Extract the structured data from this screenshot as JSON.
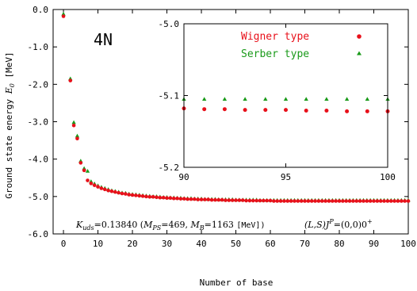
{
  "chart_data": [
    {
      "name": "main",
      "type": "scatter",
      "xlabel": "Number of base",
      "ylabel": "Ground state energy E0 [MeV]",
      "ylabel_parts": {
        "prefix": "Ground state energy ",
        "symbol": "E",
        "sub": "0",
        "suffix": " [MeV]"
      },
      "xlim": [
        -3,
        100
      ],
      "ylim": [
        -6.0,
        0.0
      ],
      "xticks": [
        0,
        10,
        20,
        30,
        40,
        50,
        60,
        70,
        80,
        90,
        100
      ],
      "yticks": [
        0.0,
        -1.0,
        -2.0,
        -3.0,
        -4.0,
        -5.0,
        -6.0
      ],
      "ytick_labels": [
        "0.0",
        "-1.0",
        "-2.0",
        "-3.0",
        "-4.0",
        "-5.0",
        "-6.0"
      ],
      "label_4n": "4N",
      "kuds_text": {
        "k": "K",
        "k_sub": "uds",
        "k_val": "=0.13840 (",
        "mps": "M",
        "mps_sub": "PS",
        "mps_val": "=469, ",
        "mb": "M",
        "mb_sub": "B",
        "mb_val": "=1163 ",
        "unit": "[MeV])"
      },
      "state_text": {
        "ls": "(L,S)J",
        "sup": "P",
        "val": "=(0,0)0",
        "sup2": "+"
      },
      "series": [
        {
          "name": "Wigner type",
          "color": "#e8101a",
          "marker": "circle",
          "x": [
            0,
            2,
            3,
            4,
            5,
            6,
            7,
            8,
            9,
            10,
            11,
            12,
            13,
            14,
            15,
            16,
            17,
            18,
            19,
            20,
            21,
            22,
            23,
            24,
            25,
            26,
            27,
            28,
            29,
            30,
            31,
            32,
            33,
            34,
            35,
            36,
            37,
            38,
            39,
            40,
            41,
            42,
            43,
            44,
            45,
            46,
            47,
            48,
            49,
            50,
            51,
            52,
            53,
            54,
            55,
            56,
            57,
            58,
            59,
            60,
            61,
            62,
            63,
            64,
            65,
            66,
            67,
            68,
            69,
            70,
            71,
            72,
            73,
            74,
            75,
            76,
            77,
            78,
            79,
            80,
            81,
            82,
            83,
            84,
            85,
            86,
            87,
            88,
            89,
            90,
            91,
            92,
            93,
            94,
            95,
            96,
            97,
            98,
            99,
            100
          ],
          "y": [
            -0.18,
            -1.9,
            -3.1,
            -3.45,
            -4.1,
            -4.3,
            -4.57,
            -4.65,
            -4.7,
            -4.74,
            -4.78,
            -4.81,
            -4.84,
            -4.86,
            -4.88,
            -4.9,
            -4.92,
            -4.93,
            -4.95,
            -4.96,
            -4.97,
            -4.98,
            -4.99,
            -5.0,
            -5.01,
            -5.01,
            -5.02,
            -5.03,
            -5.03,
            -5.04,
            -5.04,
            -5.05,
            -5.05,
            -5.06,
            -5.06,
            -5.07,
            -5.07,
            -5.07,
            -5.08,
            -5.08,
            -5.08,
            -5.08,
            -5.09,
            -5.09,
            -5.09,
            -5.09,
            -5.1,
            -5.1,
            -5.1,
            -5.1,
            -5.1,
            -5.1,
            -5.11,
            -5.11,
            -5.11,
            -5.11,
            -5.11,
            -5.11,
            -5.11,
            -5.11,
            -5.12,
            -5.12,
            -5.12,
            -5.12,
            -5.12,
            -5.12,
            -5.12,
            -5.12,
            -5.12,
            -5.12,
            -5.12,
            -5.12,
            -5.12,
            -5.12,
            -5.12,
            -5.12,
            -5.12,
            -5.12,
            -5.12,
            -5.12,
            -5.12,
            -5.12,
            -5.12,
            -5.12,
            -5.12,
            -5.12,
            -5.12,
            -5.12,
            -5.12,
            -5.12,
            -5.12,
            -5.12,
            -5.12,
            -5.12,
            -5.12,
            -5.12,
            -5.12,
            -5.12,
            -5.12,
            -5.12
          ]
        },
        {
          "name": "Serber type",
          "color": "#1a9a1a",
          "marker": "triangle",
          "x": [
            0,
            2,
            3,
            4,
            5,
            6,
            7,
            8,
            9,
            10,
            11,
            12,
            13,
            14,
            15,
            16,
            17,
            18,
            19,
            20,
            21,
            22,
            23,
            24,
            25,
            26,
            27,
            28,
            29,
            30,
            31,
            32,
            33,
            34,
            35,
            36,
            37,
            38,
            39,
            40,
            41,
            42,
            43,
            44,
            45,
            46,
            47,
            48,
            49,
            50,
            51,
            52,
            53,
            54,
            55,
            56,
            57,
            58,
            59,
            60,
            61,
            62,
            63,
            64,
            65,
            66,
            67,
            68,
            69,
            70,
            71,
            72,
            73,
            74,
            75,
            76,
            77,
            78,
            79,
            80,
            81,
            82,
            83,
            84,
            85,
            86,
            87,
            88,
            89,
            90,
            91,
            92,
            93,
            94,
            95,
            96,
            97,
            98,
            99,
            100
          ],
          "y": [
            -0.12,
            -1.85,
            -3.02,
            -3.38,
            -4.05,
            -4.25,
            -4.32,
            -4.6,
            -4.66,
            -4.71,
            -4.75,
            -4.78,
            -4.81,
            -4.84,
            -4.86,
            -4.88,
            -4.9,
            -4.91,
            -4.93,
            -4.94,
            -4.95,
            -4.96,
            -4.97,
            -4.98,
            -4.99,
            -5.0,
            -5.0,
            -5.01,
            -5.02,
            -5.02,
            -5.03,
            -5.03,
            -5.04,
            -5.04,
            -5.05,
            -5.05,
            -5.05,
            -5.06,
            -5.06,
            -5.06,
            -5.07,
            -5.07,
            -5.07,
            -5.07,
            -5.08,
            -5.08,
            -5.08,
            -5.08,
            -5.08,
            -5.09,
            -5.09,
            -5.09,
            -5.09,
            -5.09,
            -5.09,
            -5.09,
            -5.1,
            -5.1,
            -5.1,
            -5.1,
            -5.1,
            -5.1,
            -5.1,
            -5.1,
            -5.1,
            -5.1,
            -5.1,
            -5.1,
            -5.1,
            -5.1,
            -5.1,
            -5.1,
            -5.1,
            -5.1,
            -5.1,
            -5.1,
            -5.1,
            -5.1,
            -5.1,
            -5.1,
            -5.1,
            -5.1,
            -5.1,
            -5.1,
            -5.1,
            -5.1,
            -5.1,
            -5.1,
            -5.1,
            -5.1,
            -5.1,
            -5.1,
            -5.1,
            -5.1,
            -5.1,
            -5.1,
            -5.1,
            -5.1,
            -5.1,
            -5.1
          ]
        }
      ]
    },
    {
      "name": "inset",
      "type": "scatter",
      "xlim": [
        90,
        100
      ],
      "ylim": [
        -5.2,
        -5.0
      ],
      "xticks": [
        90,
        95,
        100
      ],
      "yticks": [
        -5.0,
        -5.1,
        -5.2
      ],
      "ytick_labels": [
        "-5.0",
        "-5.1",
        "-5.2"
      ],
      "legend": "top-right",
      "series": [
        {
          "name": "Wigner type",
          "color": "#e8101a",
          "marker": "circle",
          "x": [
            90,
            91,
            92,
            93,
            94,
            95,
            96,
            97,
            98,
            99,
            100
          ],
          "y": [
            -5.118,
            -5.119,
            -5.119,
            -5.12,
            -5.12,
            -5.12,
            -5.121,
            -5.121,
            -5.122,
            -5.122,
            -5.122
          ]
        },
        {
          "name": "Serber type",
          "color": "#1a9a1a",
          "marker": "triangle",
          "x": [
            90,
            91,
            92,
            93,
            94,
            95,
            96,
            97,
            98,
            99,
            100
          ],
          "y": [
            -5.105,
            -5.105,
            -5.105,
            -5.105,
            -5.105,
            -5.105,
            -5.105,
            -5.105,
            -5.105,
            -5.105,
            -5.105
          ]
        }
      ]
    }
  ]
}
